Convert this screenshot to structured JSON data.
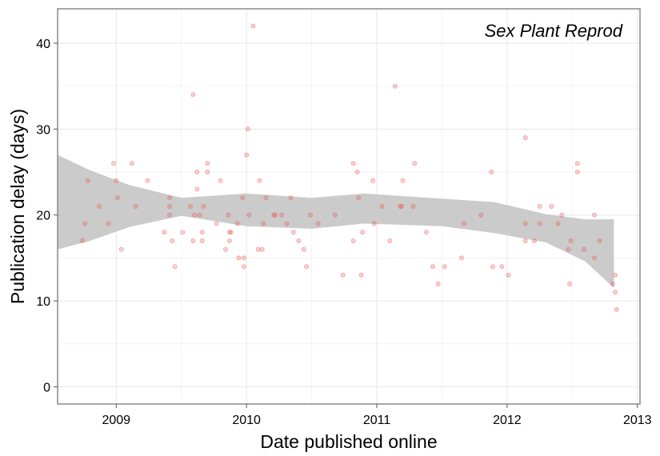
{
  "chart_data": {
    "type": "scatter",
    "title": "Sex Plant Reprod",
    "xlabel": "Date published online",
    "ylabel": "Publication delay (days)",
    "xlim": [
      2008.55,
      2013.02
    ],
    "ylim": [
      -2,
      44
    ],
    "x_ticks": [
      2009,
      2010,
      2011,
      2012,
      2013
    ],
    "x_tick_labels": [
      "2009",
      "2010",
      "2011",
      "2012",
      "2013"
    ],
    "y_ticks": [
      0,
      10,
      20,
      30,
      40
    ],
    "y_tick_labels": [
      "0",
      "10",
      "20",
      "30",
      "40"
    ],
    "grid": true,
    "point_color": "#e8574f",
    "band_color": "#cbcbcb",
    "points": [
      {
        "x": 2008.74,
        "y": 17
      },
      {
        "x": 2008.76,
        "y": 19
      },
      {
        "x": 2008.78,
        "y": 24
      },
      {
        "x": 2008.87,
        "y": 21
      },
      {
        "x": 2008.94,
        "y": 19
      },
      {
        "x": 2008.98,
        "y": 26
      },
      {
        "x": 2009.0,
        "y": 24
      },
      {
        "x": 2009.01,
        "y": 22
      },
      {
        "x": 2009.04,
        "y": 16
      },
      {
        "x": 2009.12,
        "y": 26
      },
      {
        "x": 2009.15,
        "y": 21
      },
      {
        "x": 2009.24,
        "y": 24
      },
      {
        "x": 2009.37,
        "y": 18
      },
      {
        "x": 2009.41,
        "y": 22
      },
      {
        "x": 2009.41,
        "y": 21
      },
      {
        "x": 2009.41,
        "y": 20
      },
      {
        "x": 2009.43,
        "y": 17
      },
      {
        "x": 2009.45,
        "y": 14
      },
      {
        "x": 2009.51,
        "y": 18
      },
      {
        "x": 2009.57,
        "y": 21
      },
      {
        "x": 2009.59,
        "y": 34
      },
      {
        "x": 2009.59,
        "y": 17
      },
      {
        "x": 2009.6,
        "y": 20
      },
      {
        "x": 2009.62,
        "y": 25
      },
      {
        "x": 2009.62,
        "y": 23
      },
      {
        "x": 2009.64,
        "y": 20
      },
      {
        "x": 2009.66,
        "y": 18
      },
      {
        "x": 2009.66,
        "y": 17
      },
      {
        "x": 2009.67,
        "y": 21
      },
      {
        "x": 2009.7,
        "y": 26
      },
      {
        "x": 2009.7,
        "y": 25
      },
      {
        "x": 2009.77,
        "y": 19
      },
      {
        "x": 2009.8,
        "y": 24
      },
      {
        "x": 2009.84,
        "y": 16
      },
      {
        "x": 2009.86,
        "y": 20
      },
      {
        "x": 2009.87,
        "y": 18
      },
      {
        "x": 2009.87,
        "y": 17
      },
      {
        "x": 2009.88,
        "y": 18
      },
      {
        "x": 2009.93,
        "y": 19
      },
      {
        "x": 2009.94,
        "y": 15
      },
      {
        "x": 2009.97,
        "y": 22
      },
      {
        "x": 2009.98,
        "y": 15
      },
      {
        "x": 2009.98,
        "y": 14
      },
      {
        "x": 2010.0,
        "y": 27
      },
      {
        "x": 2010.01,
        "y": 30
      },
      {
        "x": 2010.02,
        "y": 20
      },
      {
        "x": 2010.05,
        "y": 42
      },
      {
        "x": 2010.09,
        "y": 16
      },
      {
        "x": 2010.1,
        "y": 24
      },
      {
        "x": 2010.12,
        "y": 16
      },
      {
        "x": 2010.13,
        "y": 19
      },
      {
        "x": 2010.15,
        "y": 22
      },
      {
        "x": 2010.21,
        "y": 20
      },
      {
        "x": 2010.22,
        "y": 20
      },
      {
        "x": 2010.27,
        "y": 20
      },
      {
        "x": 2010.31,
        "y": 19
      },
      {
        "x": 2010.34,
        "y": 22
      },
      {
        "x": 2010.36,
        "y": 18
      },
      {
        "x": 2010.4,
        "y": 17
      },
      {
        "x": 2010.44,
        "y": 16
      },
      {
        "x": 2010.46,
        "y": 14
      },
      {
        "x": 2010.49,
        "y": 20
      },
      {
        "x": 2010.55,
        "y": 19
      },
      {
        "x": 2010.68,
        "y": 20
      },
      {
        "x": 2010.74,
        "y": 13
      },
      {
        "x": 2010.82,
        "y": 26
      },
      {
        "x": 2010.82,
        "y": 17
      },
      {
        "x": 2010.85,
        "y": 25
      },
      {
        "x": 2010.86,
        "y": 22
      },
      {
        "x": 2010.88,
        "y": 13
      },
      {
        "x": 2010.89,
        "y": 18
      },
      {
        "x": 2010.97,
        "y": 24
      },
      {
        "x": 2010.98,
        "y": 19
      },
      {
        "x": 2011.04,
        "y": 21
      },
      {
        "x": 2011.1,
        "y": 17
      },
      {
        "x": 2011.14,
        "y": 35
      },
      {
        "x": 2011.18,
        "y": 21
      },
      {
        "x": 2011.19,
        "y": 21
      },
      {
        "x": 2011.2,
        "y": 24
      },
      {
        "x": 2011.28,
        "y": 21
      },
      {
        "x": 2011.29,
        "y": 26
      },
      {
        "x": 2011.38,
        "y": 18
      },
      {
        "x": 2011.43,
        "y": 14
      },
      {
        "x": 2011.47,
        "y": 12
      },
      {
        "x": 2011.52,
        "y": 14
      },
      {
        "x": 2011.65,
        "y": 15
      },
      {
        "x": 2011.67,
        "y": 19
      },
      {
        "x": 2011.8,
        "y": 20
      },
      {
        "x": 2011.88,
        "y": 25
      },
      {
        "x": 2011.89,
        "y": 14
      },
      {
        "x": 2011.96,
        "y": 14
      },
      {
        "x": 2012.01,
        "y": 13
      },
      {
        "x": 2012.14,
        "y": 29
      },
      {
        "x": 2012.14,
        "y": 19
      },
      {
        "x": 2012.14,
        "y": 17
      },
      {
        "x": 2012.21,
        "y": 17
      },
      {
        "x": 2012.25,
        "y": 21
      },
      {
        "x": 2012.25,
        "y": 19
      },
      {
        "x": 2012.34,
        "y": 21
      },
      {
        "x": 2012.39,
        "y": 19
      },
      {
        "x": 2012.42,
        "y": 20
      },
      {
        "x": 2012.47,
        "y": 16
      },
      {
        "x": 2012.48,
        "y": 12
      },
      {
        "x": 2012.49,
        "y": 17
      },
      {
        "x": 2012.54,
        "y": 26
      },
      {
        "x": 2012.54,
        "y": 25
      },
      {
        "x": 2012.59,
        "y": 16
      },
      {
        "x": 2012.67,
        "y": 20
      },
      {
        "x": 2012.67,
        "y": 15
      },
      {
        "x": 2012.71,
        "y": 17
      },
      {
        "x": 2012.81,
        "y": 12
      },
      {
        "x": 2012.83,
        "y": 13
      },
      {
        "x": 2012.83,
        "y": 11
      },
      {
        "x": 2012.84,
        "y": 9
      }
    ],
    "smooth_band": {
      "x": [
        2008.55,
        2008.8,
        2009.1,
        2009.5,
        2010.0,
        2010.5,
        2010.9,
        2011.5,
        2011.9,
        2012.3,
        2012.6,
        2012.82
      ],
      "lower": [
        16.0,
        17.0,
        18.6,
        19.9,
        18.7,
        18.4,
        19.0,
        18.7,
        17.9,
        16.8,
        14.6,
        11.5
      ],
      "upper": [
        27.0,
        25.2,
        23.5,
        22.0,
        22.5,
        22.0,
        22.5,
        21.9,
        21.5,
        20.1,
        19.5,
        19.5
      ]
    }
  }
}
